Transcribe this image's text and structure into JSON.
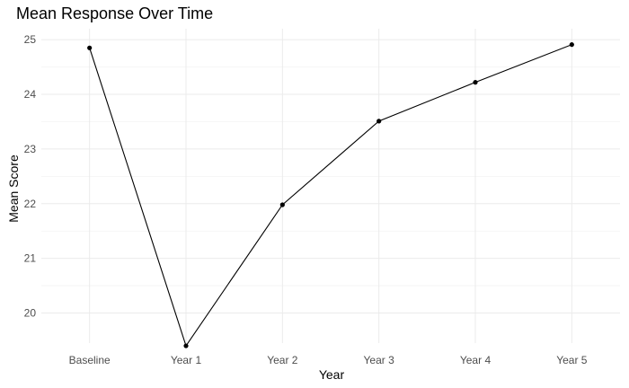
{
  "chart_data": {
    "type": "line",
    "title": "Mean Response Over Time",
    "xlabel": "Year",
    "ylabel": "Mean Score",
    "categories": [
      "Baseline",
      "Year 1",
      "Year 2",
      "Year 3",
      "Year 4",
      "Year 5"
    ],
    "values": [
      24.85,
      19.4,
      21.98,
      23.51,
      24.22,
      24.91
    ],
    "ylim": [
      19.45,
      25.2
    ],
    "yticks": [
      20,
      21,
      22,
      23,
      24,
      25
    ],
    "grid": true,
    "legend": "none",
    "colors": {
      "line": "#000000",
      "point": "#000000",
      "grid": "#ebebeb"
    }
  }
}
